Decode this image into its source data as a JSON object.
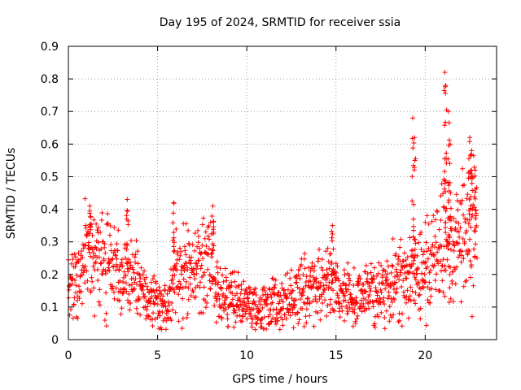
{
  "chart_data": {
    "type": "scatter",
    "title": "Day 195 of 2024, SRMTID for receiver ssia",
    "xlabel": "GPS time / hours",
    "ylabel": "SRMTID / TECUs",
    "xlim": [
      0,
      24
    ],
    "ylim": [
      0,
      0.9
    ],
    "xticks": [
      0,
      5,
      10,
      15,
      20
    ],
    "xtick_labels": [
      "0",
      "5",
      "10",
      "15",
      "20"
    ],
    "yticks": [
      0,
      0.1,
      0.2,
      0.3,
      0.4,
      0.5,
      0.6,
      0.7,
      0.8,
      0.9
    ],
    "ytick_labels": [
      "0",
      "0.1",
      "0.2",
      "0.3",
      "0.4",
      "0.5",
      "0.6",
      "0.7",
      "0.8",
      "0.9"
    ],
    "grid": true,
    "marker": "plus",
    "color": "#ff0000",
    "series_name": "SRMTID",
    "trend": {
      "x": [
        0,
        0.5,
        1,
        1.5,
        2,
        2.5,
        3,
        3.5,
        4,
        4.5,
        5,
        5.5,
        6,
        6.5,
        7,
        7.5,
        8,
        8.5,
        9,
        9.5,
        10,
        10.5,
        11,
        11.5,
        12,
        12.5,
        13,
        13.5,
        14,
        14.5,
        15,
        15.5,
        16,
        16.5,
        17,
        17.5,
        18,
        18.5,
        19,
        19.5,
        20,
        20.5,
        21,
        21.5,
        22,
        22.5,
        22.9
      ],
      "y": [
        0.17,
        0.18,
        0.26,
        0.27,
        0.26,
        0.22,
        0.18,
        0.2,
        0.16,
        0.13,
        0.11,
        0.1,
        0.22,
        0.2,
        0.21,
        0.24,
        0.22,
        0.12,
        0.14,
        0.11,
        0.1,
        0.09,
        0.1,
        0.11,
        0.1,
        0.12,
        0.15,
        0.16,
        0.17,
        0.18,
        0.15,
        0.14,
        0.13,
        0.14,
        0.15,
        0.15,
        0.17,
        0.18,
        0.19,
        0.2,
        0.22,
        0.25,
        0.28,
        0.27,
        0.3,
        0.33,
        0.35
      ]
    },
    "spikes": [
      {
        "x": 1.2,
        "y": 0.41
      },
      {
        "x": 3.3,
        "y": 0.43
      },
      {
        "x": 5.9,
        "y": 0.42
      },
      {
        "x": 8.1,
        "y": 0.41
      },
      {
        "x": 14.8,
        "y": 0.35
      },
      {
        "x": 19.3,
        "y": 0.68
      },
      {
        "x": 19.4,
        "y": 0.62
      },
      {
        "x": 21.1,
        "y": 0.82
      },
      {
        "x": 21.15,
        "y": 0.78
      },
      {
        "x": 21.3,
        "y": 0.7
      },
      {
        "x": 21.4,
        "y": 0.6
      },
      {
        "x": 22.5,
        "y": 0.62
      },
      {
        "x": 22.6,
        "y": 0.58
      },
      {
        "x": 22.8,
        "y": 0.52
      }
    ]
  }
}
